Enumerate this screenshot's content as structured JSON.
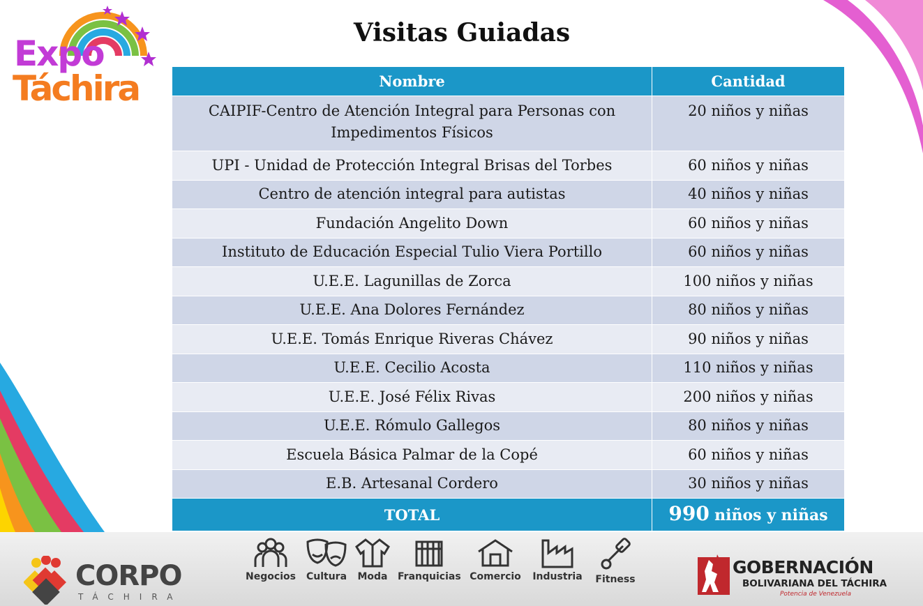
{
  "logo": {
    "expo": "Expo",
    "tachira": "Táchira"
  },
  "title": "Visitas Guiadas",
  "table": {
    "headers": [
      "Nombre",
      "Cantidad"
    ],
    "rows": [
      {
        "name": "CAIPIF-Centro de Atención Integral para Personas con Impedimentos Físicos",
        "qty": "20 niños y niñas"
      },
      {
        "name": "UPI - Unidad de Protección Integral Brisas del Torbes",
        "qty": "60 niños y niñas"
      },
      {
        "name": "Centro de atención integral para autistas",
        "qty": "40 niños y niñas"
      },
      {
        "name": "Fundación Angelito Down",
        "qty": "60 niños y niñas"
      },
      {
        "name": "Instituto de Educación Especial Tulio Viera Portillo",
        "qty": "60 niños y niñas"
      },
      {
        "name": "U.E.E. Lagunillas de Zorca",
        "qty": "100 niños y niñas"
      },
      {
        "name": "U.E.E. Ana Dolores Fernández",
        "qty": "80 niños y niñas"
      },
      {
        "name": "U.E.E.  Tomás Enrique Riveras Chávez",
        "qty": "90 niños y niñas"
      },
      {
        "name": "U.E.E. Cecilio Acosta",
        "qty": "110 niños y niñas"
      },
      {
        "name": "U.E.E.  José Félix Rivas",
        "qty": "200 niños y niñas"
      },
      {
        "name": "U.E.E. Rómulo Gallegos",
        "qty": "80 niños y niñas"
      },
      {
        "name": "Escuela Básica Palmar de la Copé",
        "qty": "60 niños y niñas"
      },
      {
        "name": "E.B. Artesanal Cordero",
        "qty": "30 niños y niñas"
      }
    ],
    "total": {
      "label": "TOTAL",
      "number": "990",
      "unit": "niños y niñas"
    }
  },
  "footer": {
    "corpo": {
      "name": "CORPO",
      "sub": "TÁCHIRA"
    },
    "categories": [
      {
        "label": "Negocios",
        "icon": "people-group-icon"
      },
      {
        "label": "Cultura",
        "icon": "theater-masks-icon"
      },
      {
        "label": "Moda",
        "icon": "jacket-icon"
      },
      {
        "label": "Franquicias",
        "icon": "storefront-icon"
      },
      {
        "label": "Comercio",
        "icon": "house-shop-icon"
      },
      {
        "label": "Industria",
        "icon": "factory-icon"
      },
      {
        "label": "Fitness",
        "icon": "dumbbell-icon"
      }
    ],
    "gobernacion": {
      "title": "GOBERNACIÓN",
      "subtitle": "BOLIVARIANA DEL TÁCHIRA",
      "tagline": "Potencia de Venezuela"
    }
  },
  "colors": {
    "header": "#1b97c8",
    "row_odd": "#cfd6e7",
    "row_even": "#e8ebf3",
    "expo": "#c23bd6",
    "tachira": "#f47c20"
  }
}
